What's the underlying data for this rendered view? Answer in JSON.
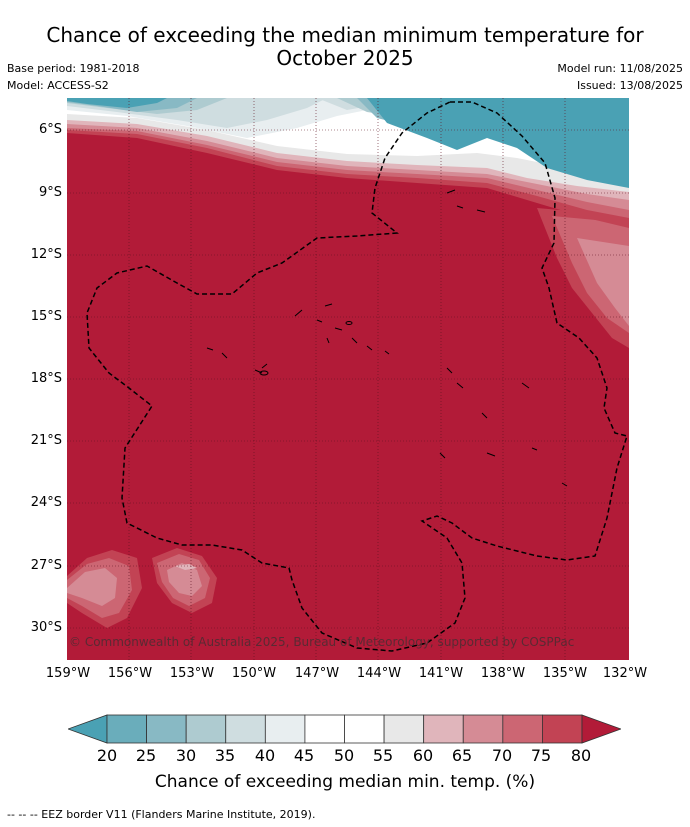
{
  "header": {
    "title_line1": "Chance of exceeding the median minimum temperature for",
    "title_line2": "October 2025",
    "base_period": "Base period: 1981-2018",
    "model": "Model: ACCESS-S2",
    "model_run": "Model run: 11/08/2025",
    "issued": "Issued: 13/08/2025"
  },
  "map": {
    "lat_labels": [
      "6°S",
      "9°S",
      "12°S",
      "15°S",
      "18°S",
      "21°S",
      "24°S",
      "27°S",
      "30°S"
    ],
    "lon_labels": [
      "159°W",
      "156°W",
      "153°W",
      "150°W",
      "147°W",
      "144°W",
      "141°W",
      "138°W",
      "135°W",
      "132°W"
    ],
    "copyright": "© Commonwealth of Australia 2025, Bureau of Meteorology, supported by COSPPac",
    "colors": {
      "c80": "#b21b38",
      "c75": "#c24354",
      "c70": "#cc6673",
      "c65": "#d58b95",
      "c60": "#e0b5bb",
      "c55": "#e8e8e8",
      "c50": "#ffffff",
      "c45": "#e8eef0",
      "c40": "#cfdde0",
      "c35": "#aecbd0",
      "c30": "#88b9c4",
      "c25": "#6aadbb",
      "c20": "#4aa1b4"
    }
  },
  "colorbar": {
    "labels": [
      "20",
      "25",
      "30",
      "35",
      "40",
      "45",
      "50",
      "55",
      "60",
      "65",
      "70",
      "75",
      "80"
    ],
    "colors": [
      "#6aadbb",
      "#88b9c4",
      "#aecbd0",
      "#cfdde0",
      "#e8eef0",
      "#ffffff",
      "#ffffff",
      "#e8e8e8",
      "#e0b5bb",
      "#d58b95",
      "#cc6673",
      "#c24354"
    ],
    "low_color": "#4aa1b4",
    "high_color": "#b21b38",
    "title": "Chance of exceeding median min. temp. (%)"
  },
  "footer": {
    "legend": "--  --  -- EEZ border V11 (Flanders Marine Institute, 2019)."
  }
}
